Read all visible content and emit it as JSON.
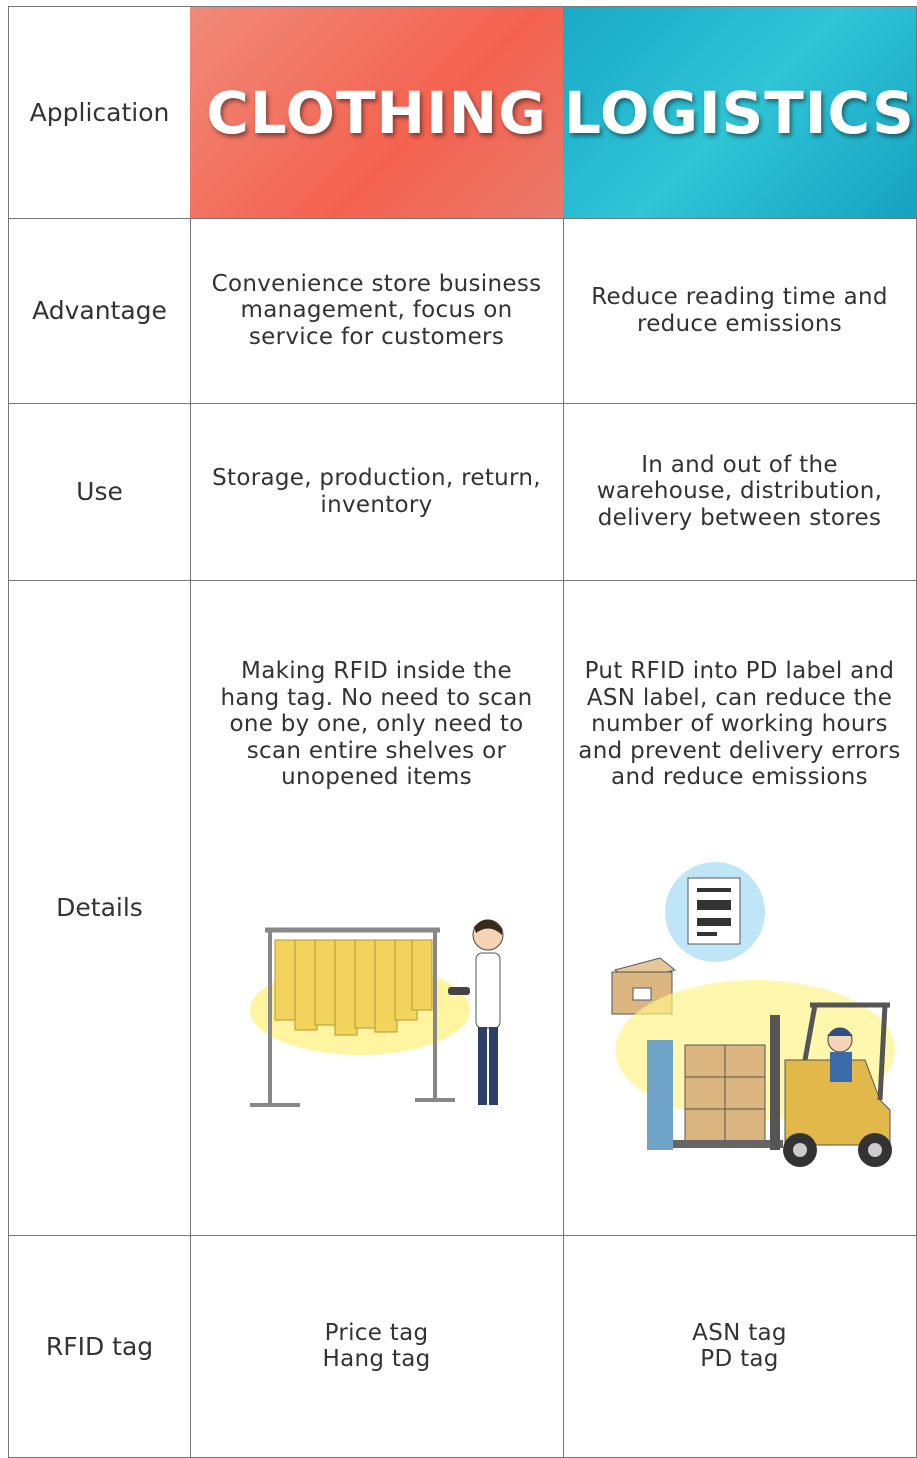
{
  "table": {
    "rows": [
      {
        "label": "Application",
        "cells": [
          [
            "CLOTHING"
          ],
          [
            "LOGISTICS"
          ]
        ]
      },
      {
        "label": "Advantage",
        "cells": [
          [
            "Convenience store business",
            "management, focus on",
            "service for customers"
          ],
          [
            "Reduce reading time and",
            "reduce emissions"
          ]
        ]
      },
      {
        "label": "Use",
        "cells": [
          [
            "Storage, production, return,",
            "inventory"
          ],
          [
            "In and out of the",
            "warehouse, distribution,",
            "delivery between stores"
          ]
        ]
      },
      {
        "label": "Details",
        "cells": [
          [
            "Making RFID inside the",
            "hang tag. No need to scan",
            "one by one, only need to",
            "scan entire shelves or",
            "unopened items"
          ],
          [
            "Put RFID into PD label and",
            "ASN label, can reduce the",
            "number of working hours",
            "and prevent delivery errors",
            "and reduce emissions"
          ]
        ]
      },
      {
        "label": "RFID tag",
        "cells": [
          [
            "Price tag",
            "Hang tag"
          ],
          [
            "ASN tag",
            "PD tag"
          ]
        ]
      }
    ]
  }
}
